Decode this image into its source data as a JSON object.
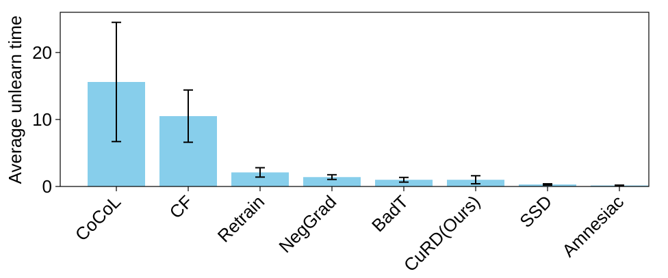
{
  "chart_data": {
    "type": "bar",
    "title": "",
    "xlabel": "",
    "ylabel": "Average unlearn time",
    "ylim": [
      0,
      26
    ],
    "yticks": [
      0,
      10,
      20
    ],
    "grid": false,
    "categories": [
      "CoCoL",
      "CF",
      "Retrain",
      "NegGrad",
      "BadT",
      "CuRD(Ours)",
      "SSD",
      "Amnesiac"
    ],
    "values": [
      15.6,
      10.5,
      2.1,
      1.4,
      1.0,
      1.0,
      0.3,
      0.15
    ],
    "errors": [
      8.9,
      3.9,
      0.7,
      0.35,
      0.35,
      0.6,
      0.1,
      0.05
    ],
    "colors": {
      "bar": "#87ceeb",
      "error": "#000000",
      "axis": "#000000"
    }
  }
}
